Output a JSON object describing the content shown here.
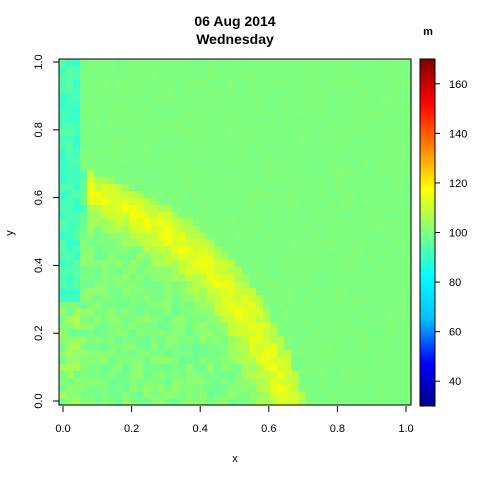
{
  "chart_data": {
    "type": "heatmap",
    "title": "06 Aug 2014",
    "subtitle": "Wednesday",
    "xlabel": "x",
    "ylabel": "y",
    "xlim": [
      0,
      1
    ],
    "ylim": [
      0,
      1
    ],
    "x_ticks": [
      "0.0",
      "0.2",
      "0.4",
      "0.6",
      "0.8",
      "1.0"
    ],
    "y_ticks": [
      "0.0",
      "0.2",
      "0.4",
      "0.6",
      "0.8",
      "1.0"
    ],
    "grid": false,
    "colorbar": {
      "label": "m",
      "range": [
        30,
        170
      ],
      "ticks": [
        "40",
        "60",
        "80",
        "100",
        "120",
        "140",
        "160"
      ],
      "palette": [
        "#00008b",
        "#0000ff",
        "#00bfff",
        "#00ffff",
        "#7fff7f",
        "#ffff00",
        "#ff7f00",
        "#ff0000",
        "#7f0000"
      ]
    },
    "grid_resolution": 50,
    "background_value": 100,
    "edge_value": 92,
    "band_peak_value": 114
  }
}
